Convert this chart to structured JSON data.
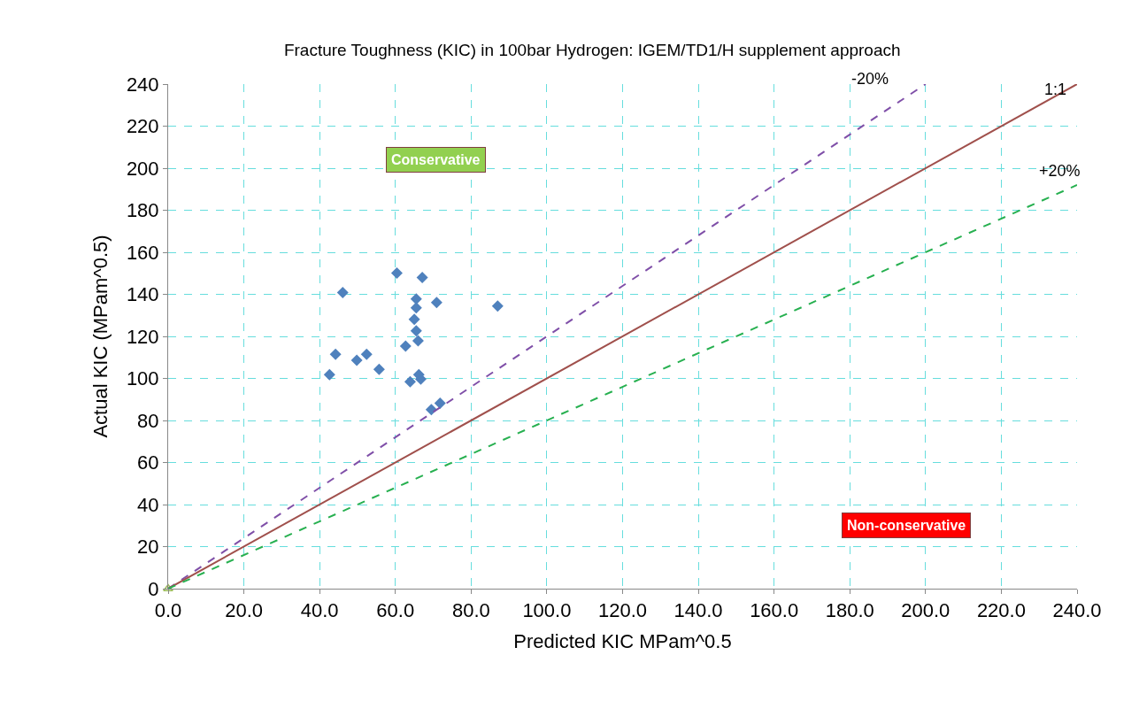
{
  "chart_data": {
    "type": "scatter",
    "title": "Fracture Toughness (KIC) in 100bar Hydrogen: IGEM/TD1/H supplement approach",
    "xlabel": "Predicted KIC MPam^0.5",
    "ylabel": "Actual KIC (MPam^0.5)",
    "xlim": [
      0,
      240
    ],
    "ylim": [
      0,
      240
    ],
    "xticks": [
      {
        "value": 0,
        "label": "0.0"
      },
      {
        "value": 20,
        "label": "20.0"
      },
      {
        "value": 40,
        "label": "40.0"
      },
      {
        "value": 60,
        "label": "60.0"
      },
      {
        "value": 80,
        "label": "80.0"
      },
      {
        "value": 100,
        "label": "100.0"
      },
      {
        "value": 120,
        "label": "120.0"
      },
      {
        "value": 140,
        "label": "140.0"
      },
      {
        "value": 160,
        "label": "160.0"
      },
      {
        "value": 180,
        "label": "180.0"
      },
      {
        "value": 200,
        "label": "200.0"
      },
      {
        "value": 220,
        "label": "220.0"
      },
      {
        "value": 240,
        "label": "240.0"
      }
    ],
    "yticks": [
      0,
      20,
      40,
      60,
      80,
      100,
      120,
      140,
      160,
      180,
      200,
      220,
      240
    ],
    "grid": true,
    "series": [
      {
        "marker": "diamond",
        "color": "#4f81bd",
        "x": [
          46.1,
          60.4,
          67.1,
          65.5,
          65.5,
          70.9,
          87.0,
          65.0,
          65.5,
          66.0,
          62.7,
          44.2,
          52.4,
          49.8,
          55.7,
          42.6,
          66.2,
          66.7,
          63.9,
          71.8,
          69.5
        ],
        "values": [
          140.8,
          150.1,
          148.0,
          137.8,
          133.6,
          136.1,
          134.4,
          128.1,
          122.6,
          117.9,
          115.4,
          111.5,
          111.5,
          108.6,
          104.3,
          101.8,
          101.8,
          99.7,
          98.4,
          88.2,
          85.2
        ]
      },
      {
        "type": "scatter",
        "marker": "triangle",
        "color": "#9bbb59",
        "x": [
          0
        ],
        "values": [
          0
        ]
      },
      {
        "type": "line",
        "name": "-20%",
        "color": "#7f4fa8",
        "line_style": "dashed",
        "x": [
          0,
          200
        ],
        "values": [
          0,
          240
        ]
      },
      {
        "type": "line",
        "name": "1:1",
        "color": "#a0504c",
        "line_style": "solid",
        "x": [
          0,
          240
        ],
        "values": [
          0,
          240
        ]
      },
      {
        "type": "line",
        "name": "+20%",
        "color": "#27b050",
        "line_style": "dashed",
        "x": [
          0,
          240
        ],
        "values": [
          0,
          192
        ]
      }
    ],
    "annotations": [
      "Conservative",
      "Non-conservative"
    ]
  }
}
